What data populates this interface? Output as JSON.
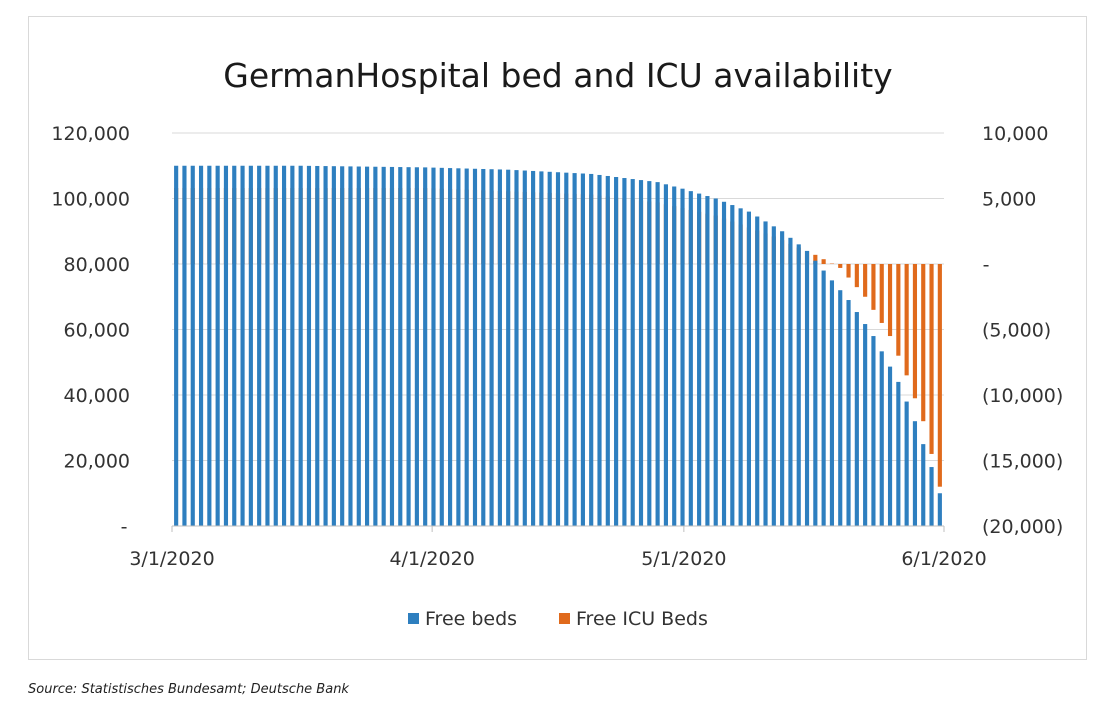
{
  "source": "Source: Statistisches Bundesamt; Deutsche Bank",
  "colors": {
    "free_beds": "#2e7fbf",
    "free_icu_beds": "#e06a1c",
    "gridline": "#d9d9d9",
    "axis": "#bfbfbf"
  },
  "chart_data": {
    "type": "bar",
    "title": "GermanHospital bed and ICU availability",
    "xlabel": "",
    "ylabel": "",
    "x_range": [
      "3/1/2020",
      "6/1/2020"
    ],
    "x_tick_labels": [
      "3/1/2020",
      "4/1/2020",
      "5/1/2020",
      "6/1/2020"
    ],
    "left_axis": {
      "ylim": [
        0,
        120000
      ],
      "ticks": [
        0,
        20000,
        40000,
        60000,
        80000,
        100000,
        120000
      ],
      "tick_labels": [
        "-",
        "20,000",
        "40,000",
        "60,000",
        "80,000",
        "100,000",
        "120,000"
      ]
    },
    "right_axis": {
      "ylim": [
        -20000,
        10000
      ],
      "ticks": [
        -20000,
        -15000,
        -10000,
        -5000,
        0,
        5000,
        10000
      ],
      "tick_labels": [
        "(20,000)",
        "(15,000)",
        "(10,000)",
        "(5,000)",
        "-",
        "5,000",
        "10,000"
      ]
    },
    "grid": true,
    "legend_position": "bottom",
    "series": [
      {
        "name": "Free beds",
        "axis": "left",
        "points": [
          {
            "x": "3/1/2020",
            "y": 110000
          },
          {
            "x": "3/16/2020",
            "y": 110000
          },
          {
            "x": "3/31/2020",
            "y": 109500
          },
          {
            "x": "4/10/2020",
            "y": 108800
          },
          {
            "x": "4/20/2020",
            "y": 107500
          },
          {
            "x": "4/28/2020",
            "y": 105000
          },
          {
            "x": "5/1/2020",
            "y": 103000
          },
          {
            "x": "5/5/2020",
            "y": 100000
          },
          {
            "x": "5/9/2020",
            "y": 96000
          },
          {
            "x": "5/13/2020",
            "y": 90000
          },
          {
            "x": "5/16/2020",
            "y": 84000
          },
          {
            "x": "5/18/2020",
            "y": 78000
          },
          {
            "x": "5/21/2020",
            "y": 69000
          },
          {
            "x": "5/24/2020",
            "y": 58000
          },
          {
            "x": "5/27/2020",
            "y": 44000
          },
          {
            "x": "5/29/2020",
            "y": 32000
          },
          {
            "x": "5/31/2020",
            "y": 18000
          },
          {
            "x": "6/1/2020",
            "y": 10000
          }
        ]
      },
      {
        "name": "Free ICU Beds",
        "axis": "right",
        "points": [
          {
            "x": "3/1/2020",
            "y": 5800
          },
          {
            "x": "3/31/2020",
            "y": 5800
          },
          {
            "x": "4/20/2020",
            "y": 5300
          },
          {
            "x": "4/28/2020",
            "y": 4700
          },
          {
            "x": "5/5/2020",
            "y": 3700
          },
          {
            "x": "5/12/2020",
            "y": 2100
          },
          {
            "x": "5/17/2020",
            "y": 700
          },
          {
            "x": "5/20/2020",
            "y": -300
          },
          {
            "x": "5/23/2020",
            "y": -2500
          },
          {
            "x": "5/26/2020",
            "y": -5500
          },
          {
            "x": "5/28/2020",
            "y": -8500
          },
          {
            "x": "5/30/2020",
            "y": -12000
          },
          {
            "x": "6/1/2020",
            "y": -17000
          }
        ]
      }
    ]
  }
}
